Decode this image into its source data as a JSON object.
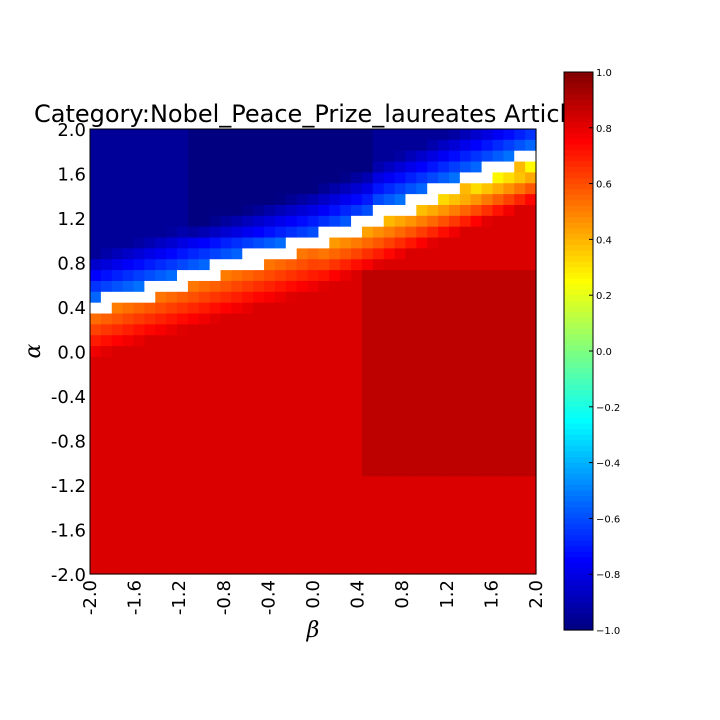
{
  "chart_data": {
    "type": "heatmap",
    "title": "Category:Nobel_Peace_Prize_laureates Articl",
    "xlabel": "β",
    "ylabel": "α",
    "x_ticks": [
      "-2.0",
      "-1.6",
      "-1.2",
      "-0.8",
      "-0.4",
      "0.0",
      "0.4",
      "0.8",
      "1.2",
      "1.6",
      "2.0"
    ],
    "y_ticks": [
      "2.0",
      "1.6",
      "1.2",
      "0.8",
      "0.4",
      "0.0",
      "-0.4",
      "-0.8",
      "-1.2",
      "-1.6",
      "-2.0"
    ],
    "xlim": [
      -2.0,
      2.0
    ],
    "ylim": [
      -2.0,
      2.0
    ],
    "grid_size": [
      41,
      41
    ],
    "colormap": "jet",
    "color_range": [
      -1.0,
      1.0
    ],
    "colorbar_ticks": [
      "1.0",
      "0.8",
      "0.6",
      "0.4",
      "0.2",
      "0.0",
      "−0.2",
      "−0.4",
      "−0.6",
      "−0.8",
      "−1.0"
    ],
    "colorbar_tick_values": [
      1.0,
      0.8,
      0.6,
      0.4,
      0.2,
      0.0,
      -0.2,
      -0.4,
      -0.6,
      -0.8,
      -1.0
    ],
    "regions": {
      "upper_left_value": -0.9,
      "lower_right_value": 0.9,
      "boundary_left": {
        "beta": -2.0,
        "alpha": 0.4
      },
      "boundary_center": {
        "beta": 0.0,
        "alpha": 1.0
      },
      "boundary_right": {
        "beta": 2.0,
        "alpha": 1.8
      },
      "boundary_undefined": "white"
    },
    "grid": false,
    "legend": "colorbar-right"
  }
}
